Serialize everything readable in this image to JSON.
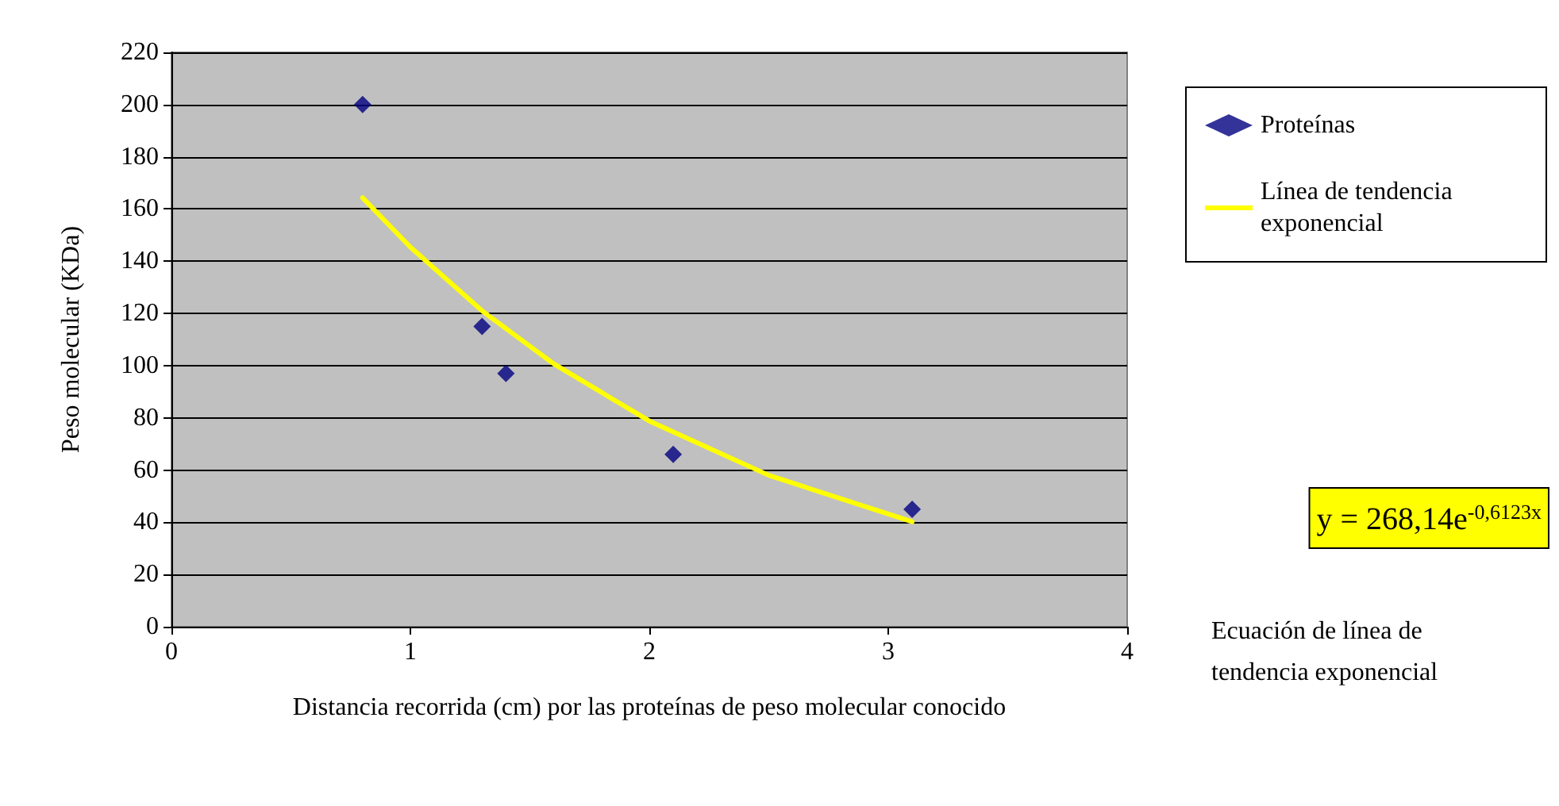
{
  "chart_data": {
    "type": "scatter",
    "xlabel": "Distancia recorrida (cm) por las proteínas de peso molecular conocido",
    "ylabel": "Peso molecular (KDa)",
    "x": [
      0.8,
      1.3,
      1.4,
      2.1,
      3.1
    ],
    "series": [
      {
        "name": "Proteínas",
        "color": "#000080",
        "values": [
          200,
          115,
          97,
          66,
          45
        ],
        "marker": "diamond"
      },
      {
        "name": "Línea de tendencia exponencial",
        "type": "line",
        "color": "#ffff00",
        "line_style": "solid",
        "marker": "none",
        "x": [
          0.8,
          1.0,
          1.3,
          1.6,
          2.0,
          2.5,
          3.1
        ],
        "values": [
          164.3,
          145.4,
          121.0,
          100.7,
          78.8,
          58.0,
          40.2
        ]
      }
    ],
    "xlim": [
      0,
      4
    ],
    "xticks": [
      0,
      1,
      2,
      3,
      4
    ],
    "ylim": [
      0,
      220
    ],
    "yticks": [
      0,
      20,
      40,
      60,
      80,
      100,
      120,
      140,
      160,
      180,
      200,
      220
    ],
    "grid": "y",
    "legend": "right",
    "annotations": [
      "y = 268,14e$^{-0,6123x}$",
      "Ecuación de línea de tendencia exponencial"
    ]
  }
}
